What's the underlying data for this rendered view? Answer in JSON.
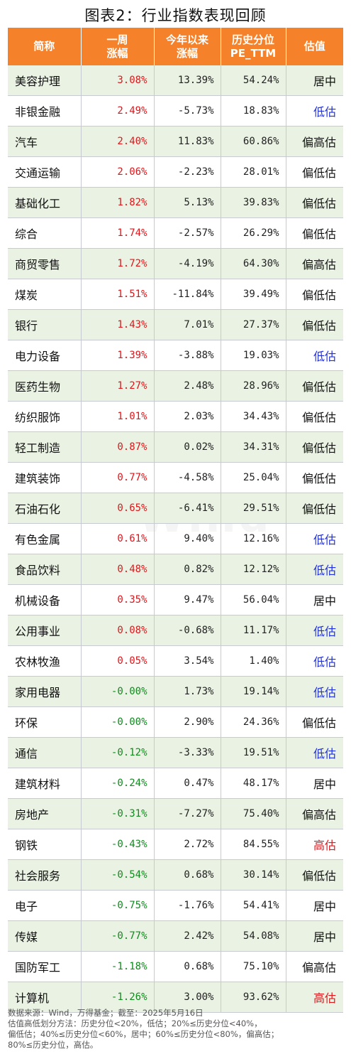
{
  "title": "图表2：行业指数表现回顾",
  "watermark": "Wind",
  "chart_data": {
    "type": "table",
    "title": "图表2：行业指数表现回顾",
    "columns": [
      "简称",
      "一周\n涨幅",
      "今年以来\n涨幅",
      "历史分位\nPE_TTM",
      "估值"
    ],
    "rows": [
      {
        "name": "美容护理",
        "week": "3.08%",
        "ytd": "13.39%",
        "pct": "54.24%",
        "val": "居中"
      },
      {
        "name": "非银金融",
        "week": "2.49%",
        "ytd": "-5.73%",
        "pct": "18.83%",
        "val": "低估"
      },
      {
        "name": "汽车",
        "week": "2.40%",
        "ytd": "11.83%",
        "pct": "60.86%",
        "val": "偏高估"
      },
      {
        "name": "交通运输",
        "week": "2.06%",
        "ytd": "-2.23%",
        "pct": "28.01%",
        "val": "偏低估"
      },
      {
        "name": "基础化工",
        "week": "1.82%",
        "ytd": "5.13%",
        "pct": "39.83%",
        "val": "偏低估"
      },
      {
        "name": "综合",
        "week": "1.74%",
        "ytd": "-2.57%",
        "pct": "26.29%",
        "val": "偏低估"
      },
      {
        "name": "商贸零售",
        "week": "1.72%",
        "ytd": "-4.19%",
        "pct": "64.30%",
        "val": "偏高估"
      },
      {
        "name": "煤炭",
        "week": "1.51%",
        "ytd": "-11.84%",
        "pct": "39.49%",
        "val": "偏低估"
      },
      {
        "name": "银行",
        "week": "1.43%",
        "ytd": "7.01%",
        "pct": "27.37%",
        "val": "偏低估"
      },
      {
        "name": "电力设备",
        "week": "1.39%",
        "ytd": "-3.88%",
        "pct": "19.03%",
        "val": "低估"
      },
      {
        "name": "医药生物",
        "week": "1.27%",
        "ytd": "2.48%",
        "pct": "28.96%",
        "val": "偏低估"
      },
      {
        "name": "纺织服饰",
        "week": "1.01%",
        "ytd": "2.03%",
        "pct": "34.43%",
        "val": "偏低估"
      },
      {
        "name": "轻工制造",
        "week": "0.87%",
        "ytd": "0.02%",
        "pct": "34.31%",
        "val": "偏低估"
      },
      {
        "name": "建筑装饰",
        "week": "0.77%",
        "ytd": "-4.58%",
        "pct": "25.04%",
        "val": "偏低估"
      },
      {
        "name": "石油石化",
        "week": "0.65%",
        "ytd": "-6.41%",
        "pct": "29.51%",
        "val": "偏低估"
      },
      {
        "name": "有色金属",
        "week": "0.61%",
        "ytd": "9.40%",
        "pct": "12.16%",
        "val": "低估"
      },
      {
        "name": "食品饮料",
        "week": "0.48%",
        "ytd": "0.82%",
        "pct": "12.12%",
        "val": "低估"
      },
      {
        "name": "机械设备",
        "week": "0.35%",
        "ytd": "9.47%",
        "pct": "56.04%",
        "val": "居中"
      },
      {
        "name": "公用事业",
        "week": "0.08%",
        "ytd": "-0.68%",
        "pct": "11.17%",
        "val": "低估"
      },
      {
        "name": "农林牧渔",
        "week": "0.05%",
        "ytd": "3.54%",
        "pct": "1.40%",
        "val": "低估"
      },
      {
        "name": "家用电器",
        "week": "-0.00%",
        "ytd": "1.73%",
        "pct": "19.14%",
        "val": "低估"
      },
      {
        "name": "环保",
        "week": "-0.00%",
        "ytd": "2.90%",
        "pct": "24.36%",
        "val": "偏低估"
      },
      {
        "name": "通信",
        "week": "-0.12%",
        "ytd": "-3.33%",
        "pct": "19.51%",
        "val": "低估"
      },
      {
        "name": "建筑材料",
        "week": "-0.24%",
        "ytd": "0.47%",
        "pct": "48.17%",
        "val": "居中"
      },
      {
        "name": "房地产",
        "week": "-0.31%",
        "ytd": "-7.27%",
        "pct": "75.40%",
        "val": "偏高估"
      },
      {
        "name": "钢铁",
        "week": "-0.43%",
        "ytd": "2.72%",
        "pct": "84.55%",
        "val": "高估"
      },
      {
        "name": "社会服务",
        "week": "-0.54%",
        "ytd": "0.68%",
        "pct": "30.14%",
        "val": "偏低估"
      },
      {
        "name": "电子",
        "week": "-0.75%",
        "ytd": "-1.76%",
        "pct": "54.41%",
        "val": "居中"
      },
      {
        "name": "传媒",
        "week": "-0.77%",
        "ytd": "2.42%",
        "pct": "54.08%",
        "val": "居中"
      },
      {
        "name": "国防军工",
        "week": "-1.18%",
        "ytd": "0.68%",
        "pct": "75.10%",
        "val": "偏高估"
      },
      {
        "name": "计算机",
        "week": "-1.26%",
        "ytd": "3.00%",
        "pct": "93.62%",
        "val": "高估"
      }
    ]
  },
  "colors": {
    "header_bg": "#f5822a",
    "row_alt_bg": "#eaf3e3",
    "positive": "#e0161b",
    "negative": "#128a1f",
    "low_valuation": "#1f2fe0",
    "high_valuation": "#e0161b"
  },
  "notes": [
    "数据来源：Wind，万得基金；截至：2025年5月16日",
    "估值高低划分方法：历史分位<20%，低估；20%≤历史分位<40%，",
    "偏低估；40%≤历史分位<60%，居中；60%≤历史分位<80%，偏高估；",
    "80%≤历史分位，高估。"
  ]
}
